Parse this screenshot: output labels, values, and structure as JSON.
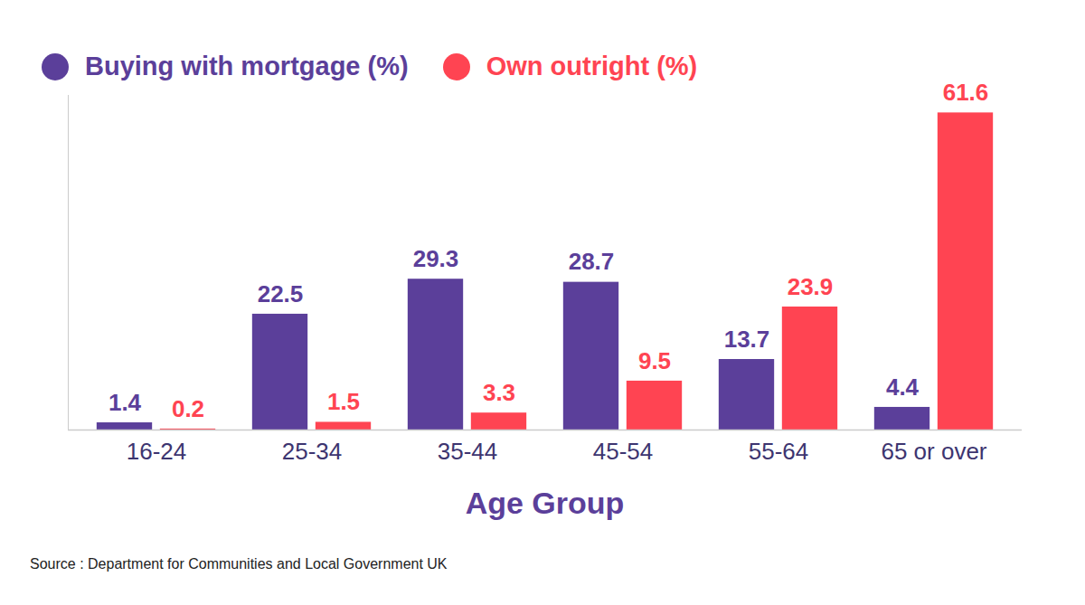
{
  "chart_data": {
    "type": "bar",
    "x_label": "Age Group",
    "categories": [
      "16-24",
      "25-34",
      "35-44",
      "45-54",
      "55-64",
      "65 or over"
    ],
    "series": [
      {
        "name": "Buying with mortgage (%)",
        "color": "#5b3f9a",
        "values": [
          1.4,
          22.5,
          29.3,
          28.7,
          13.7,
          4.4
        ]
      },
      {
        "name": "Own outright (%)",
        "color": "#ff4452",
        "values": [
          0.2,
          1.5,
          3.3,
          9.5,
          23.9,
          61.6
        ]
      }
    ],
    "ylim": [
      0,
      65
    ],
    "yticks": [],
    "tick_labels": "x",
    "data_labels": true,
    "legend": "top-left",
    "grid": false,
    "source": "Source : Department for Communities and Local Government UK"
  }
}
